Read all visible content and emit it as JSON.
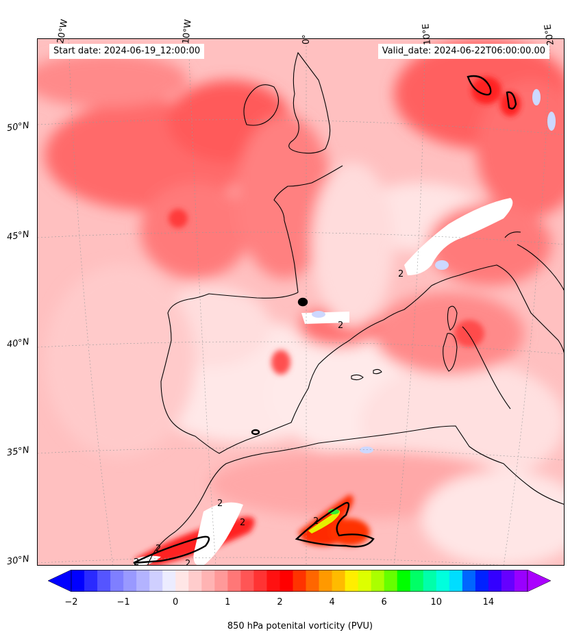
{
  "header": {
    "start_date": "Start date: 2024-06-19_12:00:00",
    "valid_date": "Valid_date: 2024-06-22T06:00:00.00"
  },
  "map": {
    "projection": "lambert-conformal",
    "extent": {
      "lon": [
        -20,
        20
      ],
      "lat": [
        30,
        54
      ]
    },
    "gridlines": true,
    "lon_labels": [
      "20°W",
      "10°W",
      "0°",
      "10°E",
      "20°E"
    ],
    "lat_labels": [
      "50°N",
      "45°N",
      "40°N",
      "35°N",
      "30°N"
    ],
    "contour_label": "2",
    "coastlines": true
  },
  "colorbar": {
    "label": "850 hPa potenital vorticity (PVU)",
    "ticks": [
      "−2",
      "−1",
      "0",
      "1",
      "2",
      "4",
      "6",
      "10",
      "14"
    ],
    "extend": "both",
    "colors": [
      "#0000ff",
      "#2a2aff",
      "#5555ff",
      "#7f7fff",
      "#9999ff",
      "#b3b3ff",
      "#cfcfff",
      "#ececff",
      "#ffe6e6",
      "#ffcccc",
      "#ffb3b3",
      "#ff9999",
      "#ff7777",
      "#ff5555",
      "#ff3333",
      "#ff1111",
      "#ff0000",
      "#ff3300",
      "#ff6600",
      "#ff9900",
      "#ffbb00",
      "#ffee00",
      "#ddff00",
      "#aaff00",
      "#66ff00",
      "#00ff00",
      "#00ff66",
      "#00ffaa",
      "#00ffdd",
      "#00ddff",
      "#0066ff",
      "#0022ff",
      "#3300ff",
      "#6600ff",
      "#9900ff"
    ],
    "under_color": "#0000ff",
    "over_color": "#aa00ff"
  }
}
